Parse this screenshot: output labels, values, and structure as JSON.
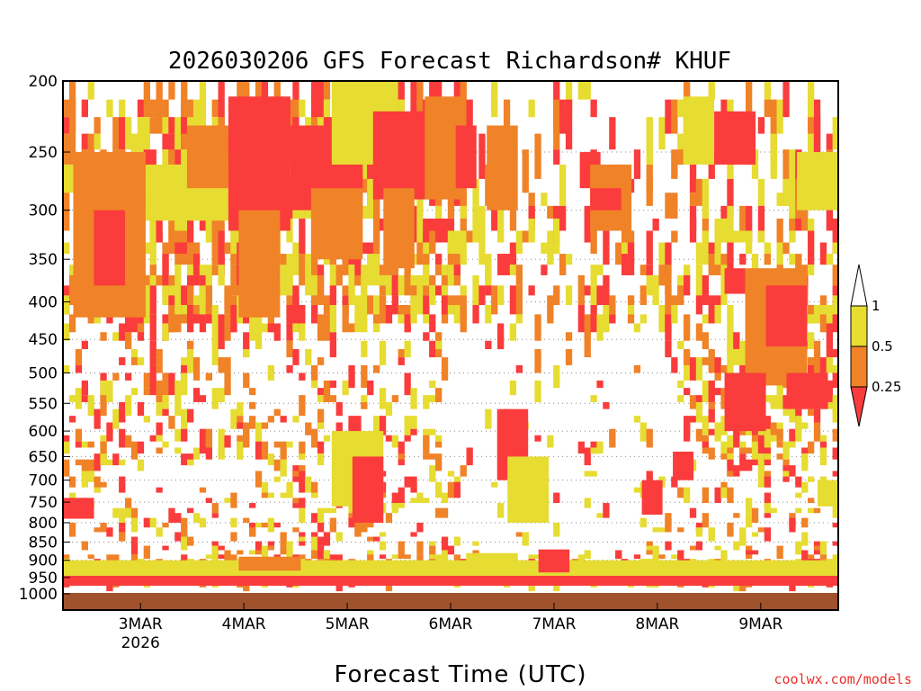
{
  "chart_data": {
    "type": "heatmap",
    "title": "2026030206 GFS Forecast Richardson# KHUF",
    "xlabel": "Forecast Time (UTC)",
    "credit": "coolwx.com/models",
    "y_ticks": [
      "200",
      "250",
      "300",
      "350",
      "400",
      "450",
      "500",
      "550",
      "600",
      "650",
      "700",
      "750",
      "800",
      "850",
      "900",
      "950",
      "1000"
    ],
    "y_range": [
      200,
      1000
    ],
    "y_scale": "log-pressure",
    "x_range_days": [
      "2 Mar 06Z",
      "9 Mar 18Z"
    ],
    "x_ticks": [
      {
        "label": "3MAR",
        "sub": "2026"
      },
      {
        "label": "4MAR"
      },
      {
        "label": "5MAR"
      },
      {
        "label": "6MAR"
      },
      {
        "label": "7MAR"
      },
      {
        "label": "8MAR"
      },
      {
        "label": "9MAR"
      }
    ],
    "grid": "dotted at pressure levels",
    "colorbar": {
      "placement": "right",
      "labels": [
        "1",
        "0.5",
        "0.25"
      ],
      "bins": [
        {
          "range": "< 0.25",
          "color": "#fa3c3c"
        },
        {
          "range": "0.25 - 0.5",
          "color": "#f08228"
        },
        {
          "range": "0.5 - 1",
          "color": "#e6dc32"
        },
        {
          "range": "> 1",
          "color": "#ffffff"
        }
      ]
    },
    "ground_color": "#a0522d",
    "blocks": [
      {
        "t0": 0.0,
        "t1": 7.5,
        "p0": 940,
        "p1": 975,
        "bin": 0
      },
      {
        "t0": 0.0,
        "t1": 7.5,
        "p0": 900,
        "p1": 945,
        "bin": 2
      },
      {
        "t0": 1.7,
        "t1": 2.3,
        "p0": 890,
        "p1": 930,
        "bin": 1
      },
      {
        "t0": 3.9,
        "t1": 4.4,
        "p0": 880,
        "p1": 935,
        "bin": 2
      },
      {
        "t0": 4.6,
        "t1": 4.9,
        "p0": 870,
        "p1": 935,
        "bin": 0
      },
      {
        "t0": 0.0,
        "t1": 0.3,
        "p0": 740,
        "p1": 790,
        "bin": 0
      },
      {
        "t0": 0.1,
        "t1": 0.8,
        "p0": 250,
        "p1": 420,
        "bin": 1
      },
      {
        "t0": 0.3,
        "t1": 0.6,
        "p0": 300,
        "p1": 380,
        "bin": 0
      },
      {
        "t0": 0.8,
        "t1": 1.6,
        "p0": 260,
        "p1": 310,
        "bin": 2
      },
      {
        "t0": 1.2,
        "t1": 1.6,
        "p0": 230,
        "p1": 280,
        "bin": 1
      },
      {
        "t0": 1.6,
        "t1": 2.2,
        "p0": 210,
        "p1": 320,
        "bin": 0
      },
      {
        "t0": 1.7,
        "t1": 2.1,
        "p0": 300,
        "p1": 420,
        "bin": 1
      },
      {
        "t0": 2.2,
        "t1": 2.9,
        "p0": 230,
        "p1": 300,
        "bin": 0
      },
      {
        "t0": 2.4,
        "t1": 2.9,
        "p0": 280,
        "p1": 350,
        "bin": 1
      },
      {
        "t0": 2.6,
        "t1": 3.2,
        "p0": 200,
        "p1": 260,
        "bin": 2
      },
      {
        "t0": 2.6,
        "t1": 3.1,
        "p0": 600,
        "p1": 760,
        "bin": 2
      },
      {
        "t0": 2.8,
        "t1": 3.1,
        "p0": 650,
        "p1": 800,
        "bin": 0
      },
      {
        "t0": 3.0,
        "t1": 3.6,
        "p0": 220,
        "p1": 290,
        "bin": 0
      },
      {
        "t0": 3.1,
        "t1": 3.4,
        "p0": 280,
        "p1": 360,
        "bin": 1
      },
      {
        "t0": 3.5,
        "t1": 3.9,
        "p0": 210,
        "p1": 290,
        "bin": 1
      },
      {
        "t0": 3.8,
        "t1": 4.0,
        "p0": 230,
        "p1": 280,
        "bin": 0
      },
      {
        "t0": 4.1,
        "t1": 4.4,
        "p0": 230,
        "p1": 300,
        "bin": 1
      },
      {
        "t0": 4.2,
        "t1": 4.5,
        "p0": 560,
        "p1": 700,
        "bin": 0
      },
      {
        "t0": 4.3,
        "t1": 4.7,
        "p0": 650,
        "p1": 800,
        "bin": 2
      },
      {
        "t0": 5.0,
        "t1": 5.2,
        "p0": 250,
        "p1": 280,
        "bin": 0
      },
      {
        "t0": 5.1,
        "t1": 5.5,
        "p0": 260,
        "p1": 320,
        "bin": 1
      },
      {
        "t0": 5.1,
        "t1": 5.4,
        "p0": 280,
        "p1": 300,
        "bin": 0
      },
      {
        "t0": 6.0,
        "t1": 6.3,
        "p0": 210,
        "p1": 260,
        "bin": 2
      },
      {
        "t0": 6.3,
        "t1": 6.7,
        "p0": 220,
        "p1": 260,
        "bin": 0
      },
      {
        "t0": 6.4,
        "t1": 6.6,
        "p0": 360,
        "p1": 390,
        "bin": 0
      },
      {
        "t0": 6.6,
        "t1": 7.2,
        "p0": 360,
        "p1": 520,
        "bin": 1
      },
      {
        "t0": 6.8,
        "t1": 7.2,
        "p0": 380,
        "p1": 460,
        "bin": 0
      },
      {
        "t0": 7.1,
        "t1": 7.5,
        "p0": 250,
        "p1": 300,
        "bin": 2
      },
      {
        "t0": 7.0,
        "t1": 7.4,
        "p0": 500,
        "p1": 560,
        "bin": 0
      },
      {
        "t0": 6.4,
        "t1": 6.8,
        "p0": 500,
        "p1": 600,
        "bin": 0
      },
      {
        "t0": 5.9,
        "t1": 6.1,
        "p0": 640,
        "p1": 700,
        "bin": 0
      },
      {
        "t0": 5.6,
        "t1": 5.8,
        "p0": 700,
        "p1": 780,
        "bin": 0
      },
      {
        "t0": 7.3,
        "t1": 7.5,
        "p0": 700,
        "p1": 760,
        "bin": 2
      }
    ]
  }
}
